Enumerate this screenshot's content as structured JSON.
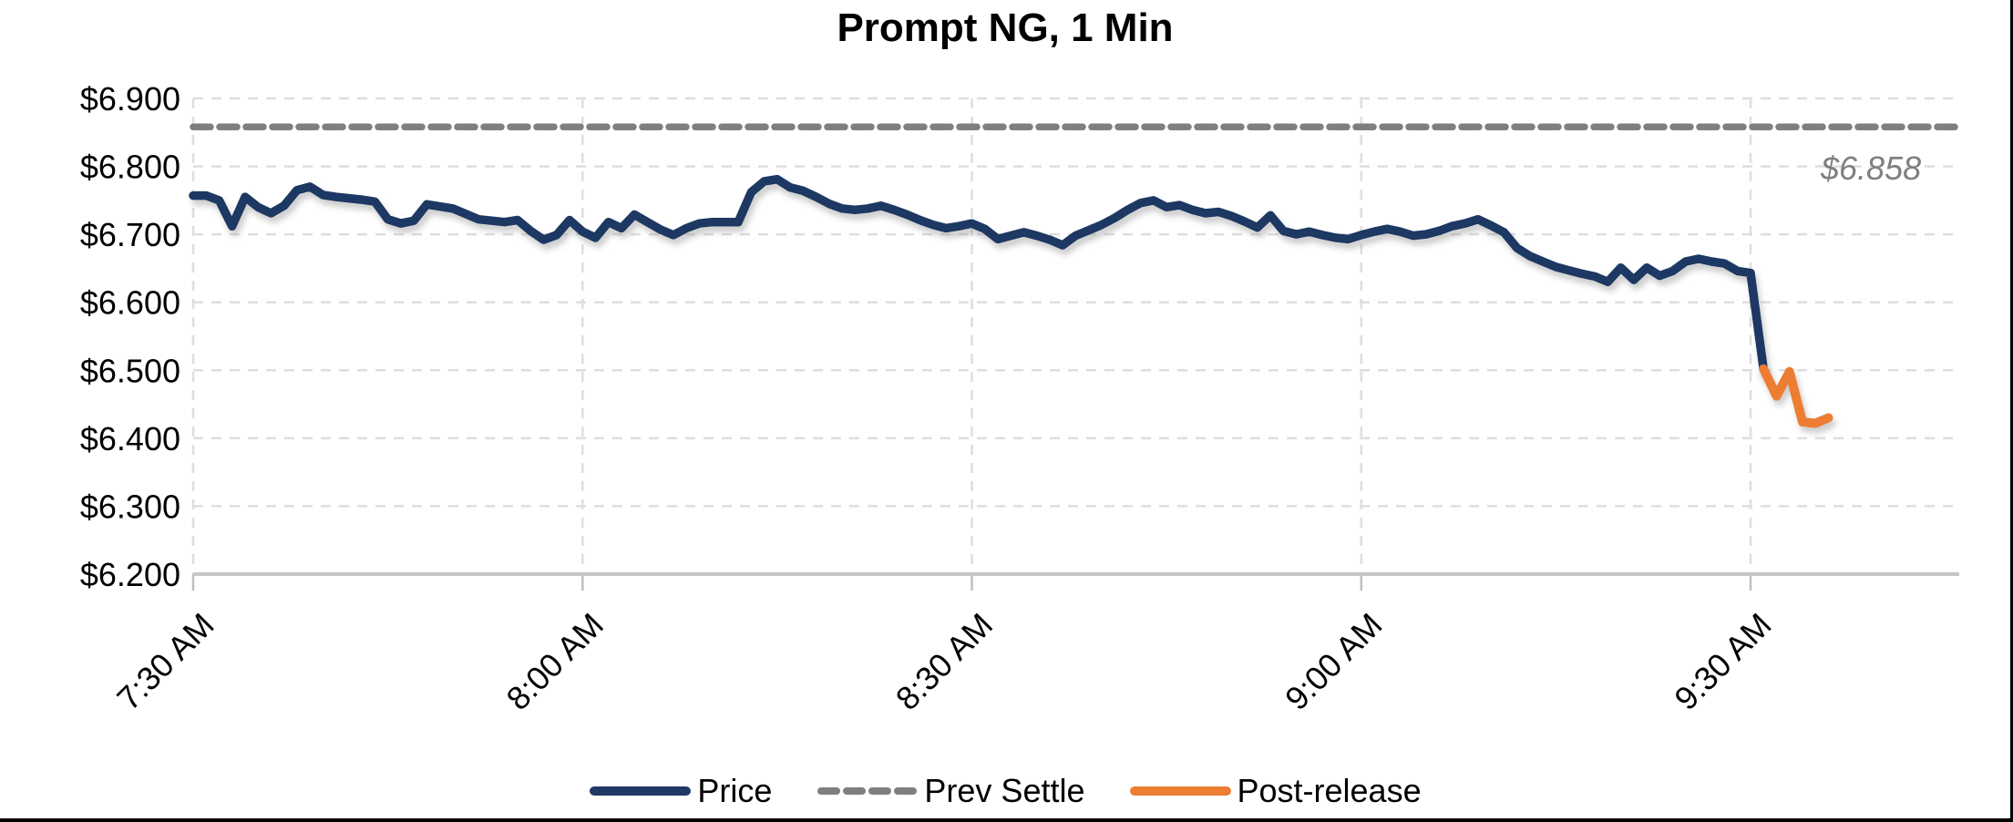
{
  "title": "Prompt NG, 1 Min",
  "annotation": {
    "text": "$6.858",
    "color": "#7f7f7f"
  },
  "legend": [
    {
      "label": "Price",
      "color": "#1f3864",
      "style": "solid"
    },
    {
      "label": "Prev Settle",
      "color": "#7f7f7f",
      "style": "dashed"
    },
    {
      "label": "Post-release",
      "color": "#ed7d31",
      "style": "solid"
    }
  ],
  "colors": {
    "price": "#1f3864",
    "prev_settle": "#7f7f7f",
    "post_release": "#ed7d31",
    "gridline": "#dedede",
    "axis_line": "#c6c6c6",
    "tick_mark": "#bfbfbf",
    "tick_label": "#000000",
    "annotation": "#7f7f7f"
  },
  "chart_data": {
    "type": "line",
    "title": "Prompt NG, 1 Min",
    "grid": "dashed",
    "legend_position": "bottom",
    "x_axis": {
      "unit": "minutes after 7:30 AM",
      "tick_labels": [
        "7:30 AM",
        "8:00 AM",
        "8:30 AM",
        "9:00 AM",
        "9:30 AM"
      ],
      "tick_minutes": [
        0,
        30,
        60,
        90,
        120
      ],
      "domain_minutes": [
        0,
        136
      ]
    },
    "y_axis": {
      "ylim": [
        6.2,
        6.9
      ],
      "tick_values": [
        6.2,
        6.3,
        6.4,
        6.5,
        6.6,
        6.7,
        6.8,
        6.9
      ],
      "tick_labels": [
        "$6.200",
        "$6.300",
        "$6.400",
        "$6.500",
        "$6.600",
        "$6.700",
        "$6.800",
        "$6.900"
      ]
    },
    "series": [
      {
        "name": "Price",
        "color": "#1f3864",
        "style": "solid",
        "start_minute": 0,
        "step_minutes": 1,
        "values": [
          6.757,
          6.757,
          6.75,
          6.712,
          6.755,
          6.74,
          6.731,
          6.742,
          6.765,
          6.77,
          6.758,
          6.755,
          6.753,
          6.751,
          6.748,
          6.722,
          6.716,
          6.72,
          6.744,
          6.741,
          6.738,
          6.73,
          6.722,
          6.72,
          6.718,
          6.721,
          6.705,
          6.692,
          6.699,
          6.721,
          6.704,
          6.695,
          6.718,
          6.709,
          6.729,
          6.718,
          6.707,
          6.699,
          6.709,
          6.716,
          6.718,
          6.718,
          6.718,
          6.762,
          6.778,
          6.781,
          6.769,
          6.764,
          6.755,
          6.745,
          6.738,
          6.736,
          6.738,
          6.742,
          6.736,
          6.729,
          6.721,
          6.714,
          6.709,
          6.712,
          6.716,
          6.708,
          6.693,
          6.698,
          6.703,
          6.698,
          6.692,
          6.684,
          6.698,
          6.706,
          6.714,
          6.724,
          6.736,
          6.746,
          6.75,
          6.74,
          6.743,
          6.736,
          6.731,
          6.733,
          6.727,
          6.719,
          6.71,
          6.728,
          6.705,
          6.7,
          6.704,
          6.699,
          6.695,
          6.693,
          6.699,
          6.704,
          6.708,
          6.704,
          6.698,
          6.7,
          6.705,
          6.712,
          6.716,
          6.722,
          6.713,
          6.703,
          6.68,
          6.668,
          6.66,
          6.652,
          6.647,
          6.642,
          6.638,
          6.63,
          6.651,
          6.633,
          6.651,
          6.639,
          6.646,
          6.66,
          6.664,
          6.66,
          6.657,
          6.646,
          6.643,
          6.502
        ]
      },
      {
        "name": "Prev Settle",
        "color": "#7f7f7f",
        "style": "dashed",
        "value": 6.858,
        "annotation": "$6.858"
      },
      {
        "name": "Post-release",
        "color": "#ed7d31",
        "style": "solid",
        "start_minute": 121,
        "step_minutes": 1,
        "values": [
          6.502,
          6.462,
          6.498,
          6.424,
          6.422,
          6.43
        ]
      }
    ]
  }
}
